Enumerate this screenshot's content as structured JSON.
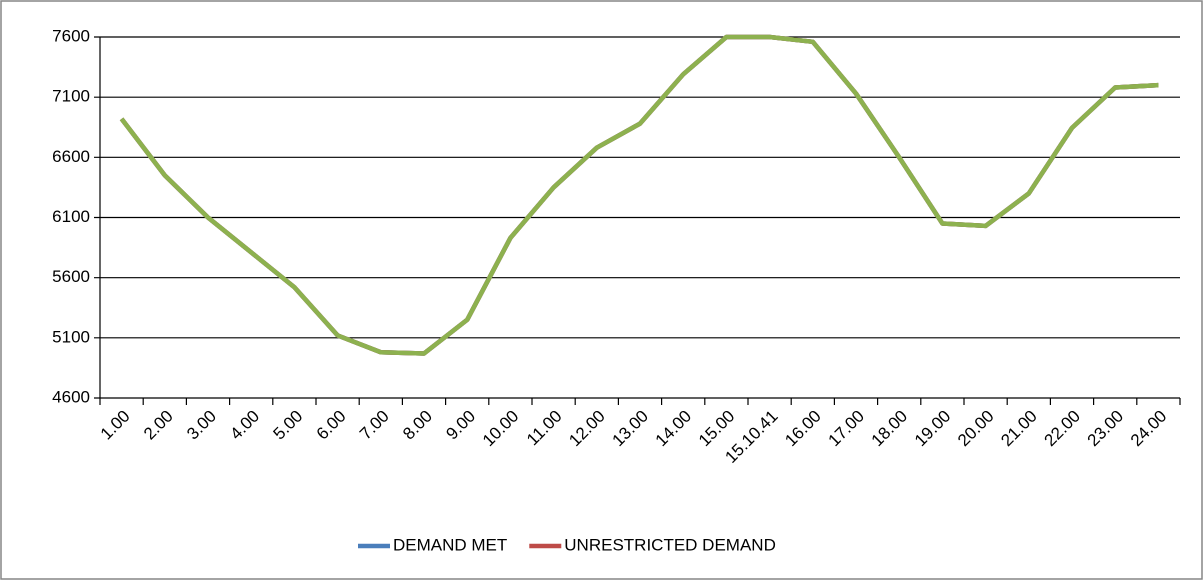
{
  "chart_data": {
    "type": "line",
    "categories": [
      "1.00",
      "2.00",
      "3.00",
      "4.00",
      "5.00",
      "6.00",
      "7.00",
      "8.00",
      "9.00",
      "10.00",
      "11.00",
      "12.00",
      "13.00",
      "14.00",
      "15.00",
      "15.10.41",
      "16.00",
      "17.00",
      "18.00",
      "19.00",
      "20.00",
      "21.00",
      "22.00",
      "23.00",
      "24.00"
    ],
    "series": [
      {
        "name": "DEMAND MET",
        "color": "#4a7ebb",
        "values": [
          6920,
          6450,
          6100,
          5810,
          5520,
          5120,
          4980,
          4970,
          5250,
          5930,
          6350,
          6680,
          6880,
          7290,
          7600,
          7600,
          7560,
          7130,
          6600,
          6050,
          6030,
          6300,
          6845,
          7180,
          7200
        ]
      },
      {
        "name": "UNRESTRICTED DEMAND",
        "color": "#be4b48",
        "values": [
          6920,
          6450,
          6100,
          5810,
          5520,
          5120,
          4980,
          4970,
          5250,
          5930,
          6350,
          6680,
          6880,
          7290,
          7600,
          7600,
          7560,
          7130,
          6600,
          6050,
          6030,
          6300,
          6845,
          7180,
          7200
        ]
      },
      {
        "color": "#8db14f",
        "values": [
          6920,
          6450,
          6100,
          5810,
          5520,
          5120,
          4980,
          4970,
          5250,
          5930,
          6350,
          6680,
          6880,
          7290,
          7600,
          7600,
          7560,
          7130,
          6600,
          6050,
          6030,
          6300,
          6845,
          7180,
          7200
        ]
      }
    ],
    "ylim": [
      4600,
      7600
    ],
    "yticks": [
      4600,
      5100,
      5600,
      6100,
      6600,
      7100,
      7600
    ],
    "grid": true,
    "legend": "bottom"
  }
}
